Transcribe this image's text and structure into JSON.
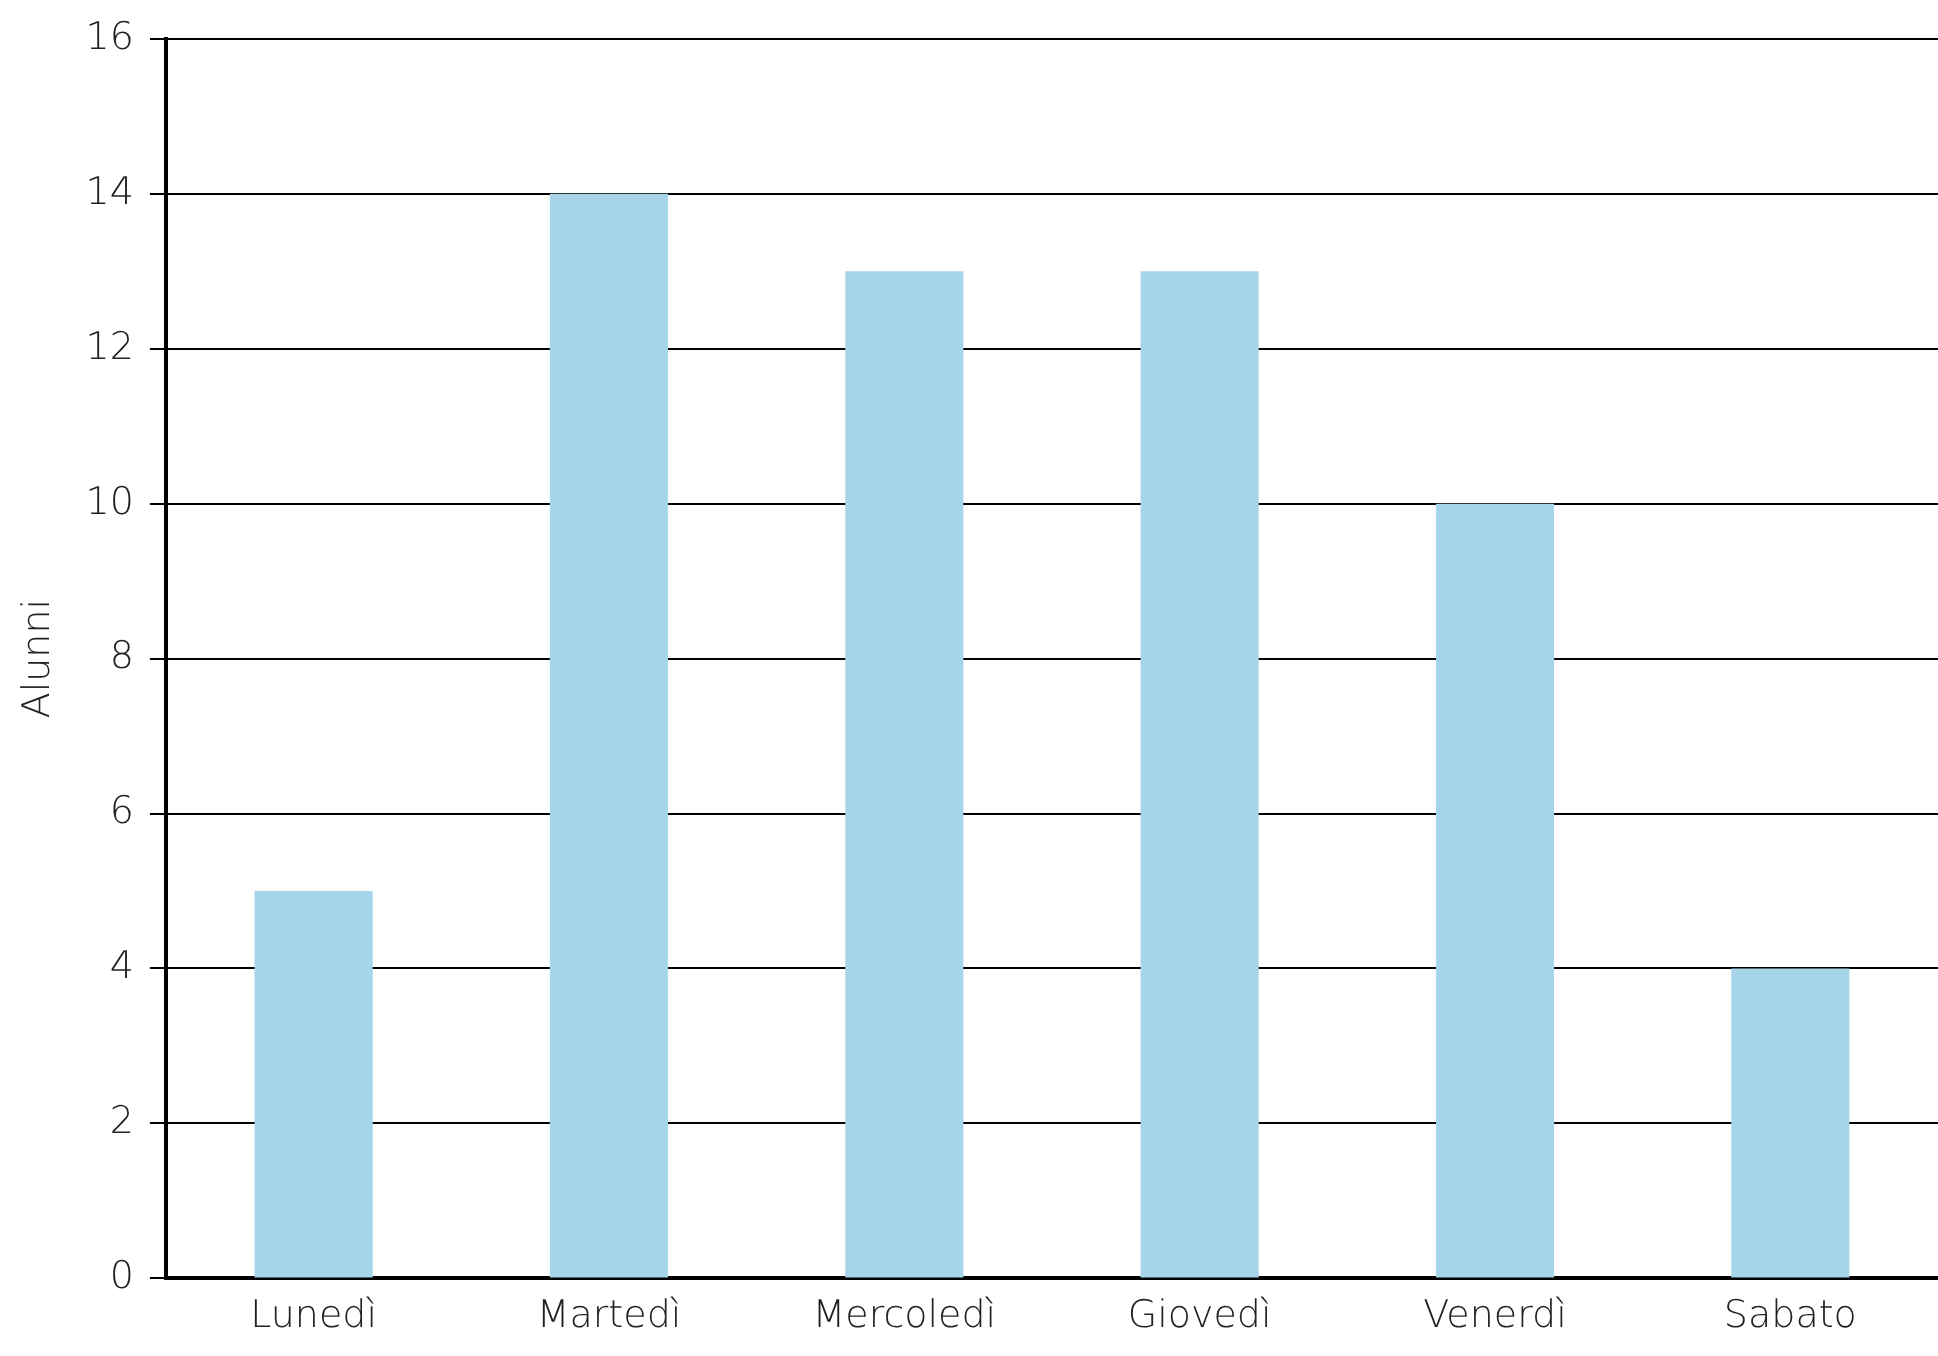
{
  "chart_data": {
    "type": "bar",
    "ylabel": "Alunni",
    "categories": [
      "Lunedì",
      "Martedì",
      "Mercoledì",
      "Giovedì",
      "Venerdì",
      "Sabato"
    ],
    "values": [
      5,
      14,
      13,
      13,
      10,
      4
    ],
    "color": "#a6d5ea",
    "ylim": [
      0,
      16
    ],
    "yticks": [
      0,
      2,
      4,
      6,
      8,
      10,
      12,
      14,
      16
    ],
    "grid": "y"
  }
}
